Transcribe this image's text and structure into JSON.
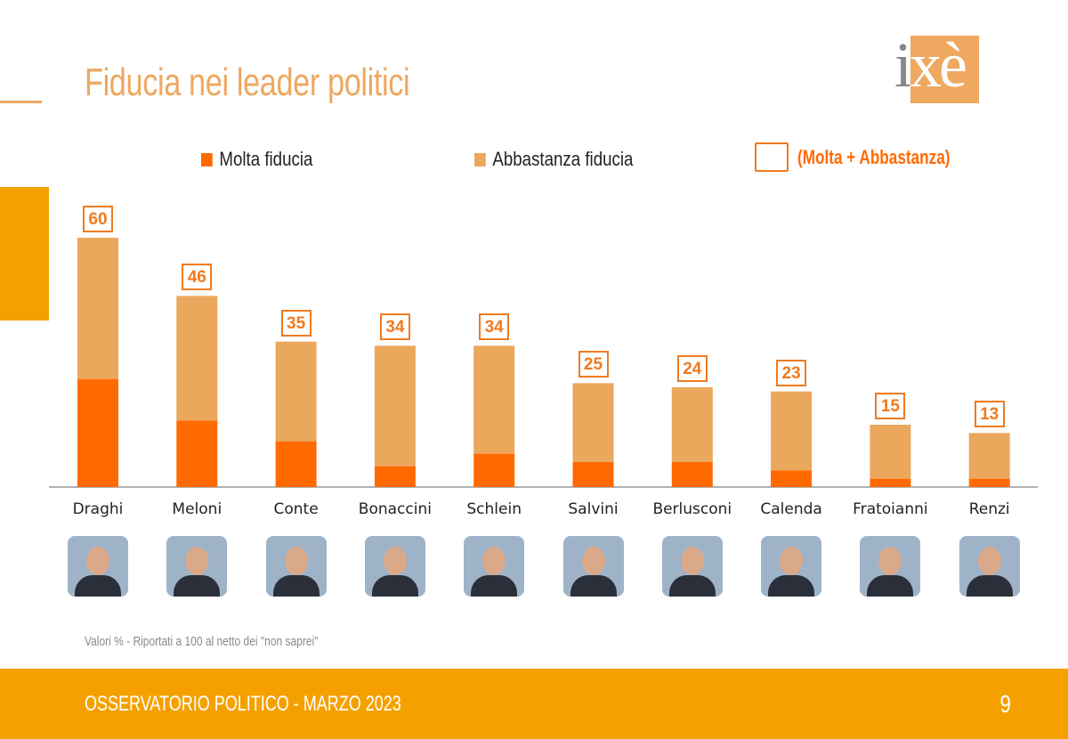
{
  "title": "Fiducia nei leader politici",
  "logo_text": "ixè",
  "note": "Valori % - Riportati a 100 al netto dei \"non saprei\"",
  "footer": {
    "text": "OSSERVATORIO POLITICO - MARZO 2023",
    "page": "9"
  },
  "colors": {
    "molta": "#ff6a00",
    "abbastanza": "#eba75c",
    "accent": "#f4a100"
  },
  "chart_data": {
    "type": "bar",
    "stacked": true,
    "title": "Fiducia nei leader politici",
    "categories": [
      "Draghi",
      "Meloni",
      "Conte",
      "Bonaccini",
      "Schlein",
      "Salvini",
      "Berlusconi",
      "Calenda",
      "Fratoianni",
      "Renzi"
    ],
    "series": [
      {
        "name": "Molta fiducia",
        "values": [
          26,
          16,
          11,
          5,
          8,
          6,
          6,
          4,
          2,
          2
        ]
      },
      {
        "name": "Abbastanza fiducia",
        "values": [
          34,
          30,
          24,
          29,
          26,
          19,
          18,
          19,
          13,
          11
        ]
      }
    ],
    "totals_label": "(Molta + Abbastanza)",
    "totals": [
      "60",
      "46",
      "35",
      "34",
      "34",
      "25",
      "24",
      "23",
      "15",
      "13"
    ],
    "ylim": [
      0,
      60
    ],
    "grid": false,
    "legend_position": "top"
  }
}
